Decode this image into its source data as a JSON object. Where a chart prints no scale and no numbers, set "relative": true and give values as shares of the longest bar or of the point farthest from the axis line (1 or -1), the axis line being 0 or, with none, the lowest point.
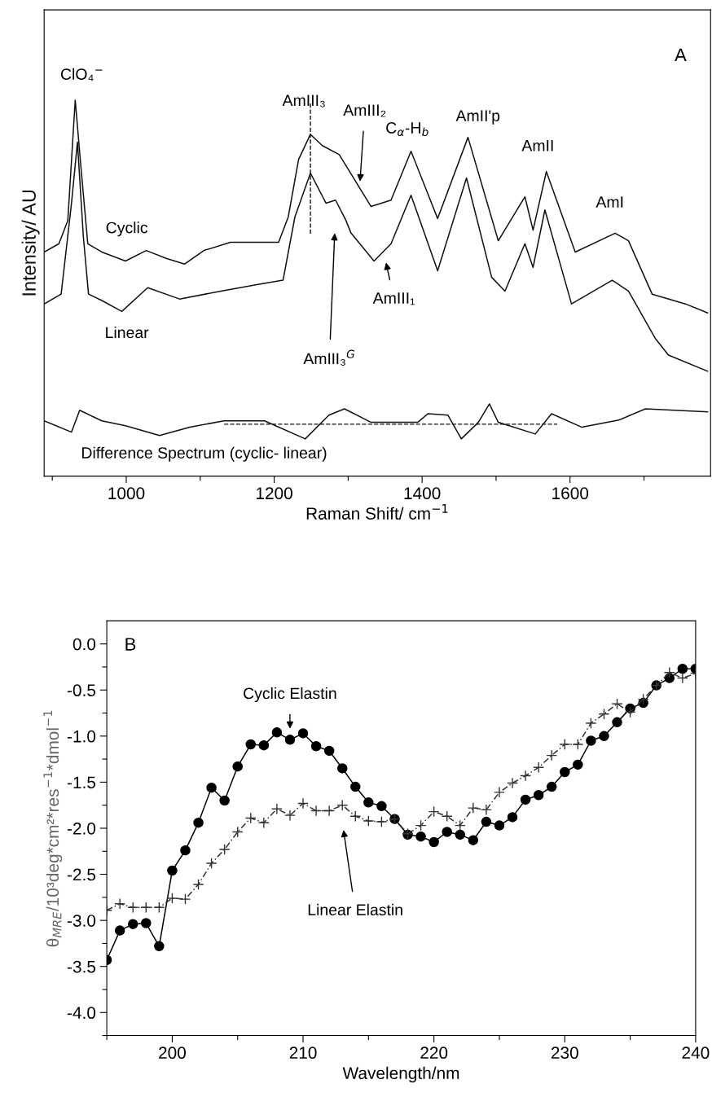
{
  "chart_data": [
    {
      "type": "line",
      "relative": true,
      "xlabel": "Raman Shift/ cm$^{−1}$",
      "ylabel": "Intensity/ AU",
      "xlim": [
        889,
        1790
      ],
      "xticks": [
        {
          "value": 900,
          "label": null
        },
        1000,
        {
          "value": 1100,
          "label": null
        },
        1200,
        {
          "value": 1300,
          "label": null
        },
        1400,
        {
          "value": 1500,
          "label": null
        },
        1600,
        {
          "value": 1700,
          "label": null
        }
      ],
      "tick_labels": "x",
      "grid": false,
      "legend": false,
      "marker": "none",
      "series": [
        {
          "name": "Cyclic",
          "color": "#111111",
          "line_style": "solid",
          "x": [
            889,
            909,
            921,
            931,
            939,
            948,
            967,
            999,
            1027,
            1054,
            1079,
            1105,
            1141,
            1183,
            1206,
            1219,
            1233,
            1249,
            1265,
            1288,
            1306,
            1331,
            1358,
            1385,
            1421,
            1462,
            1503,
            1539,
            1550,
            1568,
            1607,
            1661,
            1679,
            1711,
            1756,
            1786
          ],
          "values": [
            0.596,
            0.618,
            0.68,
            1.0,
            0.816,
            0.618,
            0.596,
            0.572,
            0.6,
            0.579,
            0.564,
            0.6,
            0.622,
            0.622,
            0.622,
            0.689,
            0.842,
            0.909,
            0.879,
            0.855,
            0.797,
            0.717,
            0.734,
            0.864,
            0.685,
            0.901,
            0.626,
            0.743,
            0.654,
            0.81,
            0.596,
            0.646,
            0.626,
            0.484,
            0.458,
            0.434
          ]
        },
        {
          "name": "Linear",
          "color": "#111111",
          "line_style": "solid",
          "x": [
            889,
            912,
            926,
            934,
            942,
            949,
            967,
            994,
            1029,
            1072,
            1128,
            1178,
            1212,
            1228,
            1249,
            1270,
            1283,
            1297,
            1304,
            1335,
            1358,
            1385,
            1421,
            1460,
            1494,
            1512,
            1539,
            1550,
            1566,
            1602,
            1657,
            1679,
            1715,
            1733,
            1786
          ],
          "values": [
            0.458,
            0.484,
            0.726,
            0.888,
            0.637,
            0.484,
            0.467,
            0.438,
            0.501,
            0.471,
            0.492,
            0.51,
            0.521,
            0.689,
            0.806,
            0.726,
            0.734,
            0.68,
            0.646,
            0.572,
            0.618,
            0.747,
            0.546,
            0.793,
            0.529,
            0.492,
            0.618,
            0.555,
            0.708,
            0.458,
            0.521,
            0.492,
            0.367,
            0.322,
            0.279
          ]
        },
        {
          "name": "Difference Spectrum (cyclic- linear)",
          "color": "#111111",
          "line_style": "solid",
          "x": [
            889,
            926,
            937,
            967,
            999,
            1045,
            1086,
            1132,
            1187,
            1242,
            1274,
            1295,
            1331,
            1394,
            1408,
            1435,
            1453,
            1476,
            1491,
            1503,
            1553,
            1575,
            1616,
            1666,
            1702,
            1786
          ],
          "values": [
            0.147,
            0.117,
            0.175,
            0.147,
            0.134,
            0.108,
            0.13,
            0.147,
            0.147,
            0.099,
            0.162,
            0.179,
            0.143,
            0.143,
            0.166,
            0.162,
            0.099,
            0.143,
            0.192,
            0.143,
            0.112,
            0.166,
            0.13,
            0.149,
            0.179,
            0.171
          ]
        }
      ],
      "ref_lines": [
        {
          "axis": "x",
          "value": 1249,
          "line_style": "dashed",
          "color": "#111111"
        },
        {
          "axis": "y",
          "value": 0.138,
          "line_style": "dashed",
          "color": "#111111"
        }
      ],
      "annotations": [
        "A",
        "ClO₄$^{−}$",
        "AmIII₃",
        "C$_{α}$-H$_{b}$",
        "AmII'p",
        "AmII",
        "AmI",
        "AmIII₂",
        "AmIII₃$^{G}$",
        "AmIII₁"
      ]
    },
    {
      "type": "line",
      "xlabel": "Wavelength/nm",
      "ylabel": "θ$_{MRE}$/10³deg*cm²*res$^{−1}$*dmol$^{−1}$",
      "xlim": [
        195,
        240
      ],
      "ylim": [
        -4.25,
        0.25
      ],
      "xticks": [
        {
          "value": 195,
          "label": null
        },
        200,
        {
          "value": 205,
          "label": null
        },
        210,
        {
          "value": 215,
          "label": null
        },
        220,
        {
          "value": 225,
          "label": null
        },
        230,
        {
          "value": 235,
          "label": null
        },
        240
      ],
      "yticks": [
        {
          "value": -4.25,
          "label": null
        },
        {
          "value": -4.0,
          "label": "-4.0"
        },
        {
          "value": -3.75,
          "label": null
        },
        {
          "value": -3.5,
          "label": "-3.5"
        },
        {
          "value": -3.25,
          "label": null
        },
        {
          "value": -3.0,
          "label": "-3.0"
        },
        {
          "value": -2.75,
          "label": null
        },
        {
          "value": -2.5,
          "label": "-2.5"
        },
        {
          "value": -2.25,
          "label": null
        },
        {
          "value": -2.0,
          "label": "-2.0"
        },
        {
          "value": -1.75,
          "label": null
        },
        {
          "value": -1.5,
          "label": "-1.5"
        },
        {
          "value": -1.25,
          "label": null
        },
        {
          "value": -1.0,
          "label": "-1.0"
        },
        {
          "value": -0.75,
          "label": null
        },
        {
          "value": -0.5,
          "label": "-0.5"
        },
        {
          "value": -0.25,
          "label": null
        },
        {
          "value": 0.0,
          "label": "0.0"
        }
      ],
      "grid": false,
      "legend": false,
      "x": [
        195,
        196,
        197,
        198,
        199,
        200,
        201,
        202,
        203,
        204,
        205,
        206,
        207,
        208,
        209,
        210,
        211,
        212,
        213,
        214,
        215,
        216,
        217,
        218,
        219,
        220,
        221,
        222,
        223,
        224,
        225,
        226,
        227,
        228,
        229,
        230,
        231,
        232,
        233,
        234,
        235,
        236,
        237,
        238,
        239,
        240
      ],
      "series": [
        {
          "color": "#000000",
          "marker": "circle",
          "line_style": "solid",
          "values": [
            -3.43,
            -3.11,
            -3.04,
            -3.03,
            -3.28,
            -2.46,
            -2.24,
            -1.94,
            -1.56,
            -1.7,
            -1.33,
            -1.09,
            -1.1,
            -0.96,
            -1.04,
            -0.97,
            -1.11,
            -1.16,
            -1.35,
            -1.55,
            -1.72,
            -1.76,
            -1.9,
            -2.07,
            -2.09,
            -2.15,
            -2.04,
            -2.07,
            -2.13,
            -1.93,
            -1.97,
            -1.88,
            -1.69,
            -1.64,
            -1.55,
            -1.39,
            -1.31,
            -1.05,
            -1.0,
            -0.85,
            -0.7,
            -0.64,
            -0.45,
            -0.37,
            -0.27,
            -0.27
          ]
        },
        {
          "color": "#333333",
          "marker": "cross",
          "line_style": "dashed",
          "values": [
            -2.89,
            -2.82,
            -2.86,
            -2.86,
            -2.86,
            -2.76,
            -2.77,
            -2.61,
            -2.38,
            -2.23,
            -2.04,
            -1.89,
            -1.94,
            -1.79,
            -1.86,
            -1.73,
            -1.81,
            -1.81,
            -1.75,
            -1.87,
            -1.92,
            -1.93,
            -1.9,
            -2.06,
            -1.97,
            -1.82,
            -1.87,
            -1.97,
            -1.78,
            -1.8,
            -1.61,
            -1.51,
            -1.43,
            -1.34,
            -1.21,
            -1.09,
            -1.09,
            -0.86,
            -0.76,
            -0.65,
            -0.74,
            -0.6,
            -0.45,
            -0.31,
            -0.37,
            -0.32
          ]
        }
      ],
      "annotations": [
        "B",
        "Cyclic Elastin",
        "Linear Elastin"
      ]
    }
  ]
}
